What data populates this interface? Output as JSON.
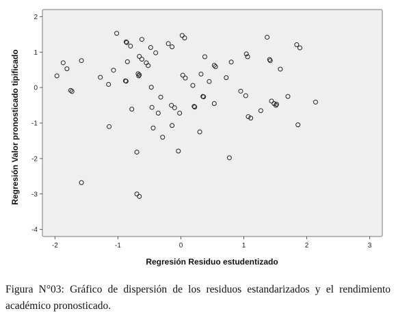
{
  "caption": "Figura N°03: Gráfico de dispersión de los residuos estandarizados y el rendimiento académico pronosticado.",
  "colors": {
    "plot_bg": "#efefef",
    "frame": "#7a7a7a",
    "marker": "#222222"
  },
  "chart_data": {
    "type": "scatter",
    "xlabel": "Regresión Residuo estudentizado",
    "ylabel": "Regresión Valor pronosticado tipificado",
    "xlim": [
      -2.2,
      3.2
    ],
    "ylim": [
      -4.2,
      2.2
    ],
    "xticks": [
      -2,
      -1,
      0,
      1,
      2,
      3
    ],
    "yticks": [
      -4,
      -3,
      -2,
      -1,
      0,
      1,
      2
    ],
    "grid": false,
    "marker": "open-circle",
    "points": [
      [
        -1.97,
        0.33
      ],
      [
        -1.87,
        0.7
      ],
      [
        -1.81,
        0.53
      ],
      [
        -1.75,
        -0.08
      ],
      [
        -1.73,
        -0.11
      ],
      [
        -1.58,
        0.76
      ],
      [
        -1.58,
        -2.68
      ],
      [
        -1.28,
        0.29
      ],
      [
        -1.15,
        0.09
      ],
      [
        -1.14,
        -1.1
      ],
      [
        -1.07,
        0.49
      ],
      [
        -1.02,
        1.53
      ],
      [
        -0.87,
        1.29
      ],
      [
        -0.86,
        1.27
      ],
      [
        -0.85,
        0.73
      ],
      [
        -0.88,
        0.19
      ],
      [
        -0.87,
        0.18
      ],
      [
        -0.8,
        1.17
      ],
      [
        -0.78,
        -0.61
      ],
      [
        -0.7,
        -1.82
      ],
      [
        -0.7,
        -3.0
      ],
      [
        -0.66,
        -3.07
      ],
      [
        -0.68,
        0.39
      ],
      [
        -0.67,
        0.33
      ],
      [
        -0.66,
        0.36
      ],
      [
        -0.66,
        0.88
      ],
      [
        -0.62,
        0.8
      ],
      [
        -0.62,
        1.36
      ],
      [
        -0.55,
        0.7
      ],
      [
        -0.52,
        0.62
      ],
      [
        -0.48,
        1.13
      ],
      [
        -0.47,
        0.01
      ],
      [
        -0.46,
        -0.56
      ],
      [
        -0.44,
        -1.14
      ],
      [
        -0.4,
        0.98
      ],
      [
        -0.36,
        -0.72
      ],
      [
        -0.32,
        -0.27
      ],
      [
        -0.29,
        -1.4
      ],
      [
        -0.2,
        1.24
      ],
      [
        -0.15,
        -0.5
      ],
      [
        -0.14,
        1.15
      ],
      [
        -0.14,
        -1.07
      ],
      [
        -0.1,
        -0.57
      ],
      [
        -0.04,
        -1.79
      ],
      [
        -0.02,
        -0.72
      ],
      [
        0.02,
        1.47
      ],
      [
        0.03,
        0.35
      ],
      [
        0.06,
        1.4
      ],
      [
        0.07,
        0.27
      ],
      [
        0.19,
        0.06
      ],
      [
        0.21,
        -0.53
      ],
      [
        0.22,
        -0.55
      ],
      [
        0.3,
        -1.25
      ],
      [
        0.32,
        0.38
      ],
      [
        0.35,
        -0.25
      ],
      [
        0.36,
        -0.26
      ],
      [
        0.38,
        0.87
      ],
      [
        0.45,
        0.17
      ],
      [
        0.53,
        0.63
      ],
      [
        0.55,
        0.59
      ],
      [
        0.53,
        -0.45
      ],
      [
        0.72,
        0.28
      ],
      [
        0.77,
        -1.98
      ],
      [
        0.8,
        0.72
      ],
      [
        0.95,
        -0.1
      ],
      [
        1.03,
        -0.23
      ],
      [
        1.04,
        0.95
      ],
      [
        1.06,
        0.87
      ],
      [
        1.07,
        -0.82
      ],
      [
        1.11,
        -0.86
      ],
      [
        1.27,
        -0.65
      ],
      [
        1.37,
        1.42
      ],
      [
        1.41,
        0.79
      ],
      [
        1.42,
        0.76
      ],
      [
        1.44,
        -0.38
      ],
      [
        1.48,
        -0.45
      ],
      [
        1.51,
        -0.5
      ],
      [
        1.52,
        -0.47
      ],
      [
        1.58,
        0.52
      ],
      [
        1.7,
        -0.25
      ],
      [
        1.84,
        1.21
      ],
      [
        1.86,
        -1.05
      ],
      [
        1.89,
        1.12
      ],
      [
        2.14,
        -0.41
      ]
    ]
  }
}
